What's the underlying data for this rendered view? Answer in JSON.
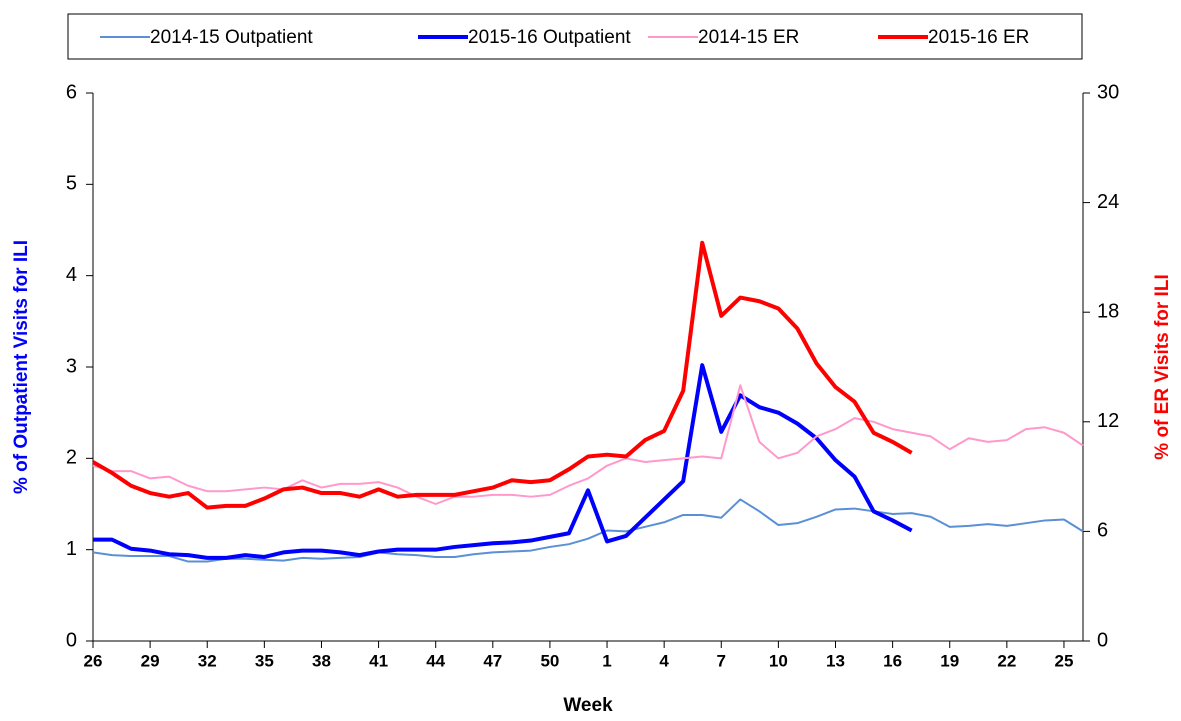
{
  "chart_data": {
    "type": "line",
    "x_label": "Week",
    "y_label": "% of Outpatient Visits for ILI",
    "y2_label": "% of ER Visits for ILI",
    "y_label_color": "#0000ff",
    "y2_label_color": "#ff0000",
    "categories": [
      "26",
      null,
      null,
      "29",
      null,
      null,
      "32",
      null,
      null,
      "35",
      null,
      null,
      "38",
      null,
      null,
      "41",
      null,
      null,
      "44",
      null,
      null,
      "47",
      null,
      null,
      "50",
      null,
      null,
      "1",
      null,
      null,
      "4",
      null,
      null,
      "7",
      null,
      null,
      "10",
      null,
      null,
      "13",
      null,
      null,
      "16",
      null,
      null,
      "19",
      null,
      null,
      "22",
      null,
      null,
      "25",
      null
    ],
    "ylim": [
      0,
      6
    ],
    "yticks": [
      0,
      1,
      2,
      3,
      4,
      5,
      6
    ],
    "y2lim": [
      0,
      30
    ],
    "y2ticks": [
      0,
      6,
      12,
      18,
      24,
      30
    ],
    "legend": "top",
    "series": [
      {
        "name": "2014-15 Outpatient",
        "color": "#5b8fd6",
        "width": 2,
        "values": [
          0.97,
          0.94,
          0.93,
          0.93,
          0.93,
          0.87,
          0.87,
          0.9,
          0.9,
          0.89,
          0.88,
          0.91,
          0.9,
          0.91,
          0.92,
          0.97,
          0.95,
          0.94,
          0.92,
          0.92,
          0.95,
          0.97,
          0.98,
          0.99,
          1.03,
          1.06,
          1.12,
          1.21,
          1.2,
          1.25,
          1.3,
          1.38,
          1.38,
          1.35,
          1.55,
          1.42,
          1.27,
          1.29,
          1.36,
          1.44,
          1.45,
          1.42,
          1.39,
          1.4,
          1.36,
          1.25,
          1.26,
          1.28,
          1.26,
          1.29,
          1.32,
          1.33,
          1.2
        ]
      },
      {
        "name": "2015-16 Outpatient",
        "color": "#0000ff",
        "width": 4,
        "values": [
          1.11,
          1.11,
          1.01,
          0.99,
          0.95,
          0.94,
          0.91,
          0.91,
          0.94,
          0.92,
          0.97,
          0.99,
          0.99,
          0.97,
          0.94,
          0.98,
          1.0,
          1.0,
          1.0,
          1.03,
          1.05,
          1.07,
          1.08,
          1.1,
          1.14,
          1.18,
          1.65,
          1.09,
          1.15,
          1.35,
          1.55,
          1.75,
          3.02,
          2.29,
          2.69,
          2.56,
          2.5,
          2.38,
          2.22,
          1.98,
          1.8,
          1.42,
          1.32,
          1.21,
          null,
          null,
          null,
          null,
          null,
          null,
          null,
          null,
          null
        ]
      },
      {
        "name": "2014-15 ER",
        "color": "#ff99cc",
        "width": 2,
        "axis": "y2",
        "values": [
          9.6,
          9.3,
          9.3,
          8.9,
          9.0,
          8.5,
          8.2,
          8.2,
          8.3,
          8.4,
          8.3,
          8.8,
          8.4,
          8.6,
          8.6,
          8.7,
          8.4,
          7.9,
          7.5,
          7.9,
          7.9,
          8.0,
          8.0,
          7.9,
          8.0,
          8.5,
          8.9,
          9.6,
          10.0,
          9.8,
          9.9,
          10.0,
          10.1,
          10.0,
          14.0,
          10.9,
          10.0,
          10.3,
          11.2,
          11.6,
          12.2,
          12.0,
          11.6,
          11.4,
          11.2,
          10.5,
          11.1,
          10.9,
          11.0,
          11.6,
          11.7,
          11.4,
          10.7
        ]
      },
      {
        "name": "2015-16 ER",
        "color": "#ff0000",
        "width": 4,
        "axis": "y2",
        "values": [
          9.8,
          9.2,
          8.5,
          8.1,
          7.9,
          8.1,
          7.3,
          7.4,
          7.4,
          7.8,
          8.3,
          8.4,
          8.1,
          8.1,
          7.9,
          8.3,
          7.9,
          8.0,
          8.0,
          8.0,
          8.2,
          8.4,
          8.8,
          8.7,
          8.8,
          9.4,
          10.1,
          10.2,
          10.1,
          11.0,
          11.5,
          13.7,
          21.8,
          17.8,
          18.8,
          18.6,
          18.2,
          17.1,
          15.2,
          13.9,
          13.1,
          11.4,
          10.9,
          10.3,
          null,
          null,
          null,
          null,
          null,
          null,
          null,
          null,
          null
        ]
      }
    ]
  }
}
